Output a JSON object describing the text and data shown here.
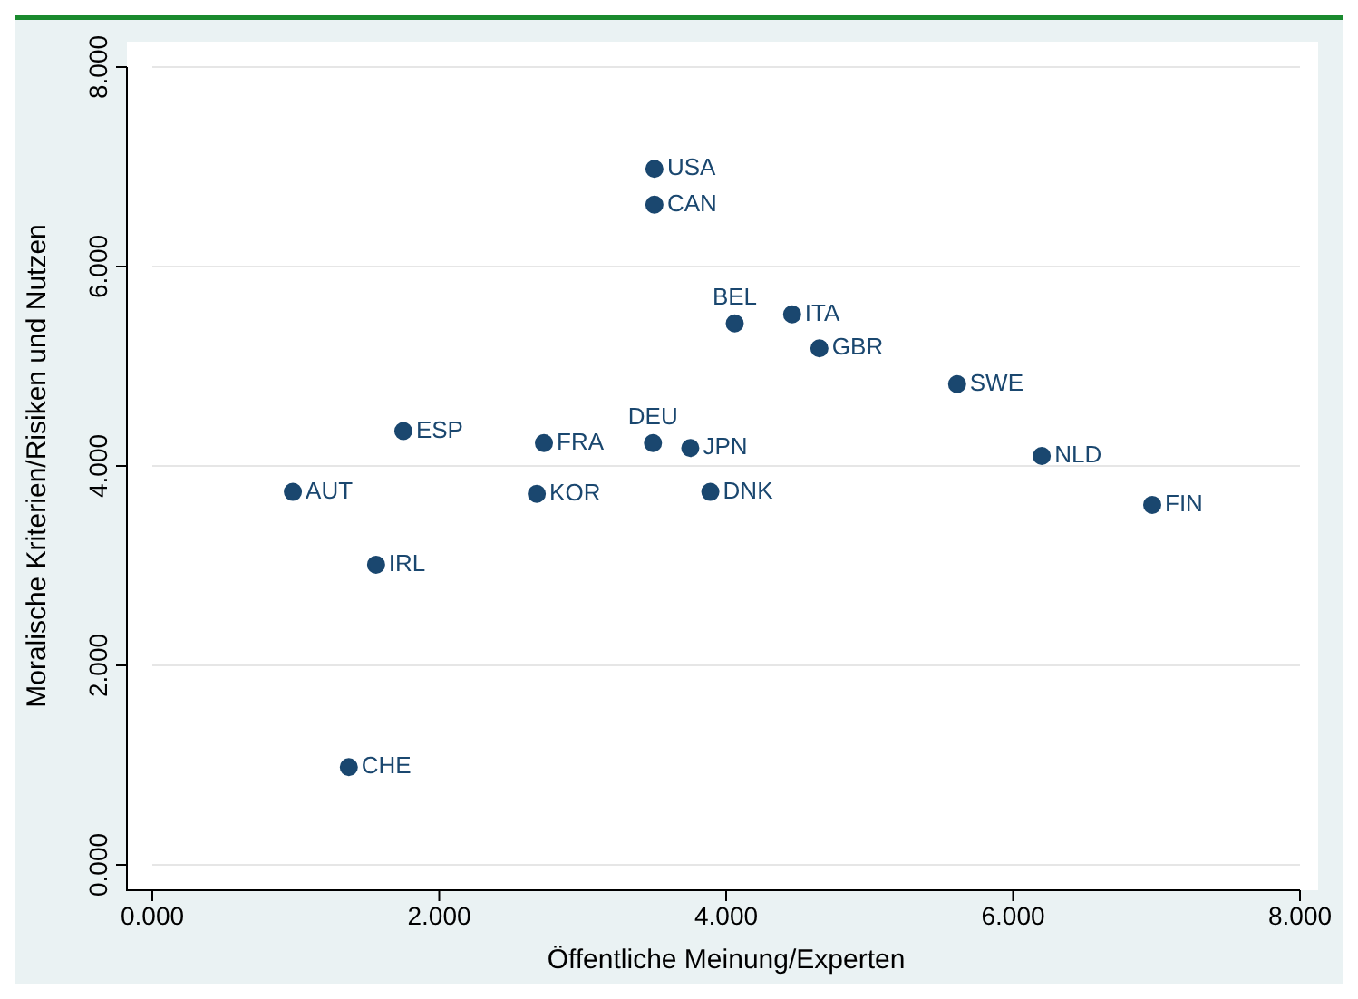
{
  "chart_data": {
    "type": "scatter",
    "xlabel": "Öffentliche Meinung/Experten",
    "ylabel": "Moralische Kriterien/Risiken und Nutzen",
    "x": [
      3.5,
      3.5,
      4.46,
      4.06,
      4.65,
      5.61,
      6.2,
      6.97,
      1.75,
      2.73,
      3.49,
      3.75,
      0.98,
      2.68,
      3.89,
      1.56,
      1.37
    ],
    "series": [
      {
        "color": "#1a476f",
        "values": [
          6.98,
          6.62,
          5.52,
          5.43,
          5.18,
          4.82,
          4.1,
          3.61,
          4.35,
          4.23,
          4.23,
          4.18,
          3.74,
          3.72,
          3.74,
          3.01,
          0.98
        ]
      }
    ],
    "annotations": [
      {
        "text": "USA",
        "x": 3.5,
        "y": 6.98
      },
      {
        "text": "CAN",
        "x": 3.5,
        "y": 6.62
      },
      {
        "text": "ITA",
        "x": 4.46,
        "y": 5.52
      },
      {
        "text": "BEL",
        "x": 4.06,
        "y": 5.43
      },
      {
        "text": "GBR",
        "x": 4.65,
        "y": 5.18
      },
      {
        "text": "SWE",
        "x": 5.61,
        "y": 4.82
      },
      {
        "text": "NLD",
        "x": 6.2,
        "y": 4.1
      },
      {
        "text": "FIN",
        "x": 6.97,
        "y": 3.61
      },
      {
        "text": "ESP",
        "x": 1.75,
        "y": 4.35
      },
      {
        "text": "FRA",
        "x": 2.73,
        "y": 4.23
      },
      {
        "text": "DEU",
        "x": 3.49,
        "y": 4.23
      },
      {
        "text": "JPN",
        "x": 3.75,
        "y": 4.18
      },
      {
        "text": "AUT",
        "x": 0.98,
        "y": 3.74
      },
      {
        "text": "KOR",
        "x": 2.68,
        "y": 3.72
      },
      {
        "text": "DNK",
        "x": 3.89,
        "y": 3.74
      },
      {
        "text": "IRL",
        "x": 1.56,
        "y": 3.01
      },
      {
        "text": "CHE",
        "x": 1.37,
        "y": 0.98
      }
    ],
    "xlim": [
      0,
      8
    ],
    "ylim": [
      0,
      8
    ],
    "xticks": [
      {
        "value": 0,
        "label": "0.000"
      },
      {
        "value": 2,
        "label": "2.000"
      },
      {
        "value": 4,
        "label": "4.000"
      },
      {
        "value": 6,
        "label": "6.000"
      },
      {
        "value": 8,
        "label": "8.000"
      }
    ],
    "yticks": [
      {
        "value": 0,
        "label": "0.000"
      },
      {
        "value": 2,
        "label": "2.000"
      },
      {
        "value": 4,
        "label": "4.000"
      },
      {
        "value": 6,
        "label": "6.000"
      },
      {
        "value": 8,
        "label": "8.000"
      }
    ],
    "grid": "y",
    "marker": "circle",
    "legend": false
  }
}
